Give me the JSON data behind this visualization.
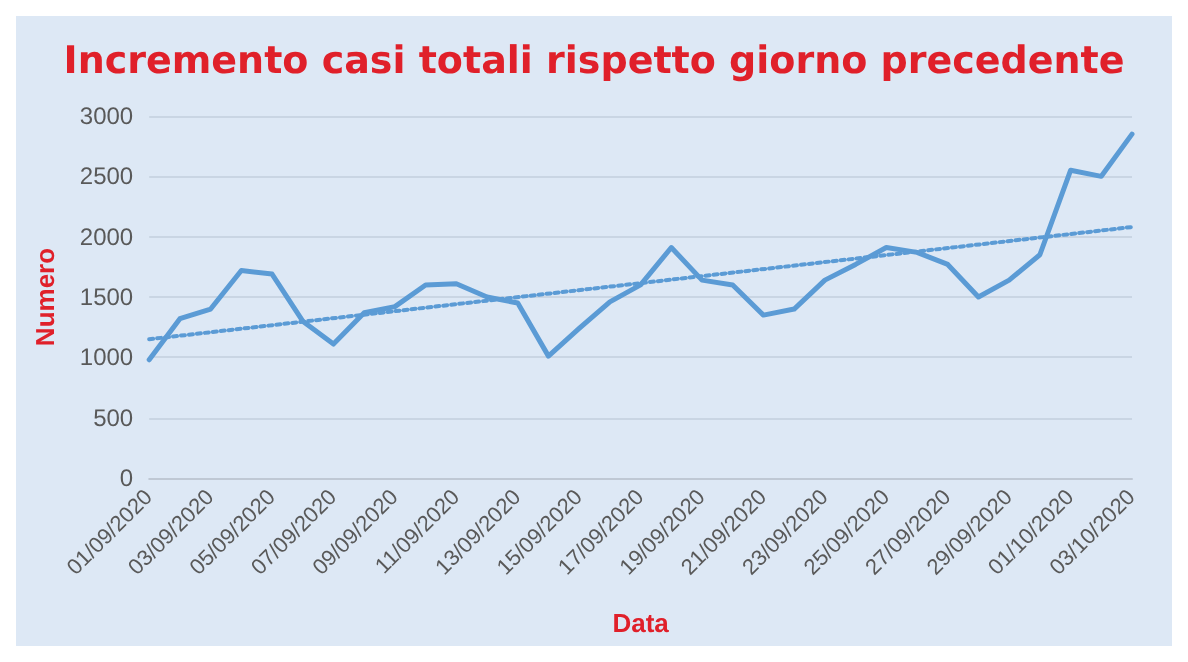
{
  "chart_data": {
    "type": "line",
    "title": "Incremento casi totali rispetto giorno precedente",
    "xlabel": "Data",
    "ylabel": "Numero",
    "categories": [
      "01/09/2020",
      null,
      "03/09/2020",
      null,
      "05/09/2020",
      null,
      "07/09/2020",
      null,
      "09/09/2020",
      null,
      "11/09/2020",
      null,
      "13/09/2020",
      null,
      "15/09/2020",
      null,
      "17/09/2020",
      null,
      "19/09/2020",
      null,
      "21/09/2020",
      null,
      "23/09/2020",
      null,
      "25/09/2020",
      null,
      "27/09/2020",
      null,
      "29/09/2020",
      null,
      "01/10/2020",
      null,
      "03/10/2020"
    ],
    "series": [
      {
        "color": "#5b9bd5",
        "line_style": "solid",
        "values": [
          980,
          1320,
          1400,
          1720,
          1690,
          1300,
          1110,
          1370,
          1420,
          1600,
          1610,
          1500,
          1450,
          1010,
          1240,
          1460,
          1600,
          1910,
          1640,
          1600,
          1350,
          1400,
          1640,
          1770,
          1910,
          1870,
          1770,
          1500,
          1640,
          1850,
          2550,
          2500,
          2850
        ]
      },
      {
        "type": "line",
        "color": "#5b9bd5",
        "line_style": "dotted",
        "x": [
          "01/09/2020",
          "03/10/2020"
        ],
        "values": [
          1150,
          2080
        ]
      }
    ],
    "ylim": [
      0,
      3000
    ],
    "yticks": [
      0,
      500,
      1000,
      1500,
      2000,
      2500,
      3000
    ],
    "grid": "y",
    "marker": "none"
  }
}
